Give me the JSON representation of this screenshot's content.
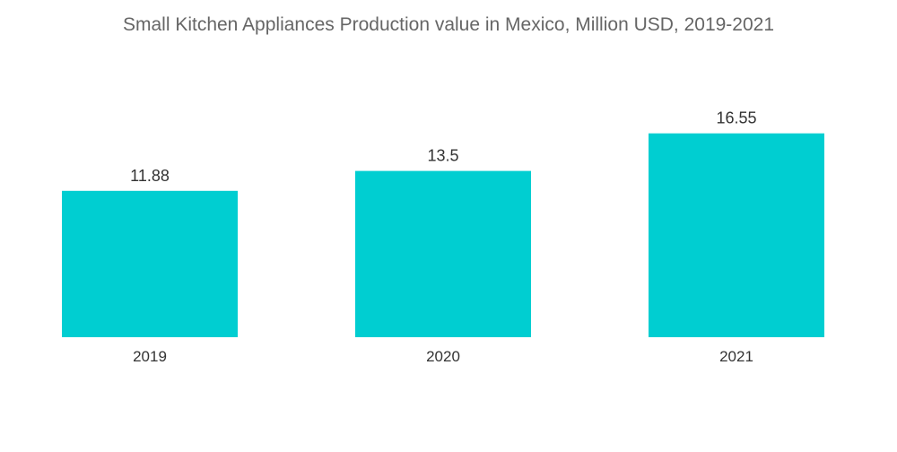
{
  "chart_data": {
    "type": "bar",
    "title": "Small Kitchen Appliances Production value in Mexico, Million USD, 2019-2021",
    "categories": [
      "2019",
      "2020",
      "2021"
    ],
    "values": [
      11.88,
      13.5,
      16.55
    ],
    "value_labels": [
      "11.88",
      "13.5",
      "16.55"
    ],
    "xlabel": "",
    "ylabel": "",
    "ylim": [
      0,
      23.3
    ],
    "grid": false,
    "legend": "none",
    "bar_color": "#00CED1"
  }
}
